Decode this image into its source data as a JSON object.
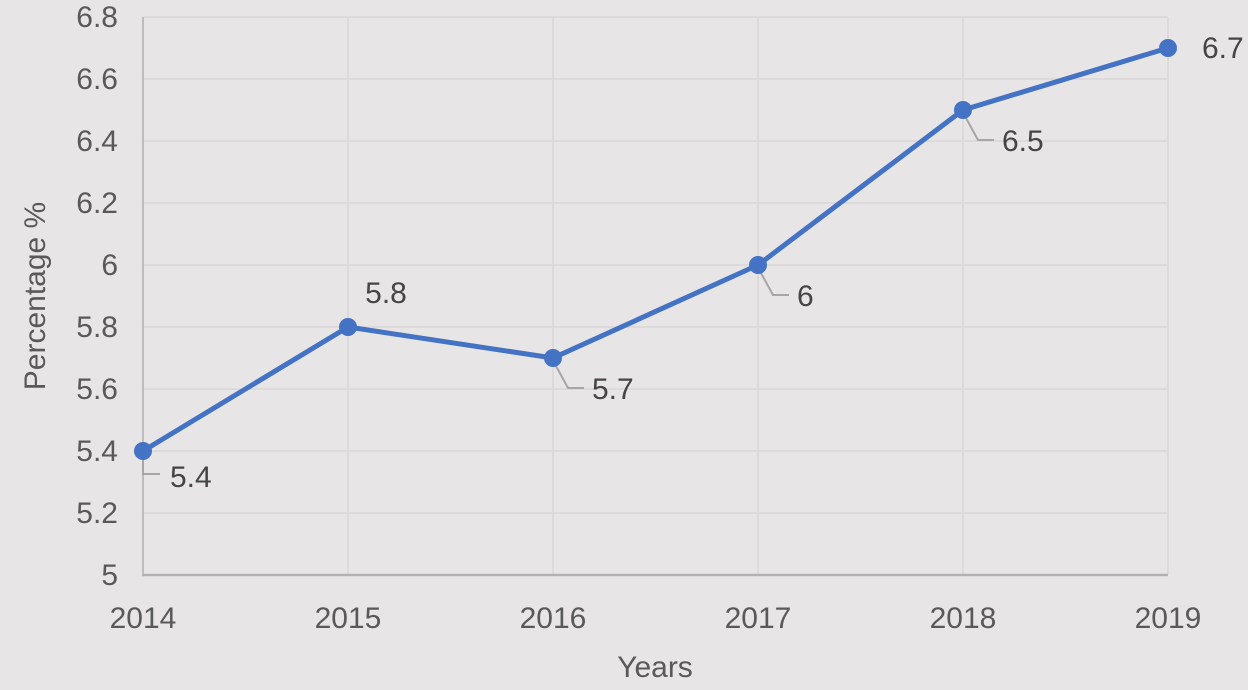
{
  "chart_data": {
    "type": "line",
    "xlabel": "Years",
    "ylabel": "Percentage %",
    "categories": [
      "2014",
      "2015",
      "2016",
      "2017",
      "2018",
      "2019"
    ],
    "values": [
      5.4,
      5.8,
      5.7,
      6.0,
      6.5,
      6.7
    ],
    "data_labels": [
      "5.4",
      "5.8",
      "5.7",
      "6",
      "6.5",
      "6.7"
    ],
    "y_tick_labels": [
      "5",
      "5.2",
      "5.4",
      "5.6",
      "5.8",
      "6",
      "6.2",
      "6.4",
      "6.6",
      "6.8"
    ],
    "ylim": [
      5,
      6.8
    ],
    "grid": "both",
    "legend": "none",
    "label_placements": [
      "leader-down",
      "above",
      "leader-diag",
      "leader-diag",
      "leader-diag",
      "right"
    ],
    "colors": {
      "line": "#4472C4",
      "marker": "#4472C4",
      "background": "#e7e5e5",
      "gridline": "#d9d7d7",
      "axis_line": "#b3b1b1",
      "tick_text": "#595959",
      "label_text": "#454545",
      "leader": "#a6a6a6"
    }
  }
}
